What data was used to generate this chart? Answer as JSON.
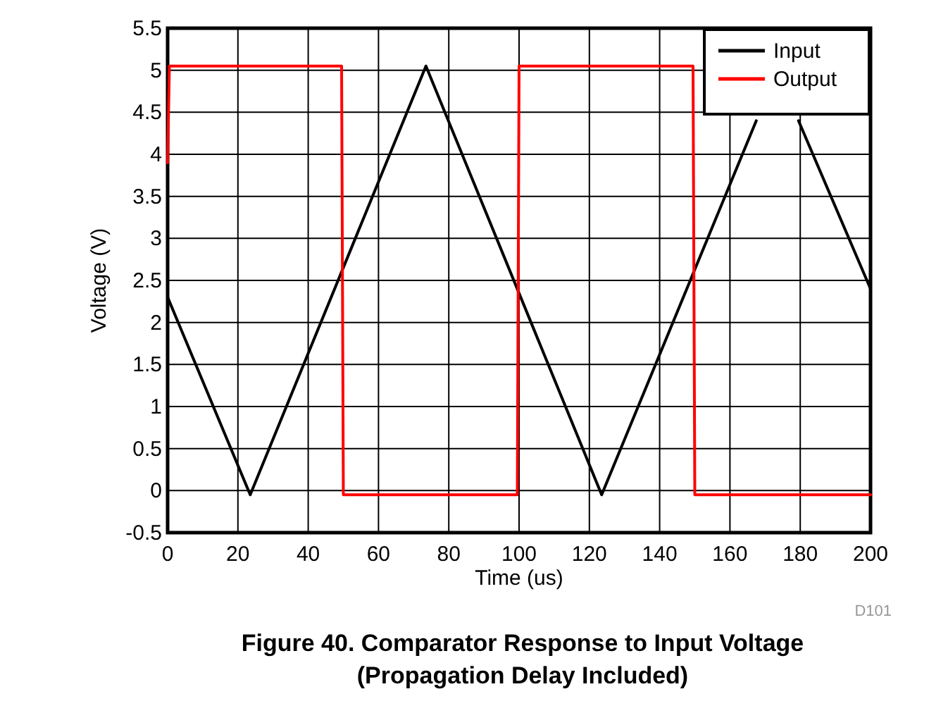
{
  "chart_data": {
    "type": "line",
    "title": "Figure 40. Comparator Response to Input Voltage\n(Propagation Delay Included)",
    "xlabel": "Time (us)",
    "ylabel": "Voltage (V)",
    "xlim": [
      0,
      200
    ],
    "xticks": [
      0,
      20,
      40,
      60,
      80,
      100,
      120,
      140,
      160,
      180,
      200
    ],
    "ylim": [
      -0.5,
      5.5
    ],
    "yticks": [
      -0.5,
      0,
      0.5,
      1,
      1.5,
      2,
      2.5,
      3,
      3.5,
      4,
      4.5,
      5,
      5.5
    ],
    "grid": true,
    "legend": "top right",
    "line_style": "solid",
    "marker": "none",
    "annotations": [
      "D101"
    ],
    "series": [
      {
        "name": "Input",
        "color": "#000000",
        "x": [
          0,
          23.5,
          73.5,
          123.5,
          167.5,
          173.5,
          179.5,
          200
        ],
        "values": [
          2.3,
          -0.05,
          5.05,
          -0.05,
          4.4,
          null,
          4.4,
          2.4
        ]
      },
      {
        "name": "Output",
        "color": "#ff0000",
        "x": [
          0,
          0.5,
          49.5,
          50,
          99.5,
          100,
          149.5,
          150,
          200
        ],
        "values": [
          3.9,
          5.05,
          5.05,
          -0.05,
          -0.05,
          5.05,
          5.05,
          -0.05,
          -0.05
        ]
      }
    ]
  }
}
